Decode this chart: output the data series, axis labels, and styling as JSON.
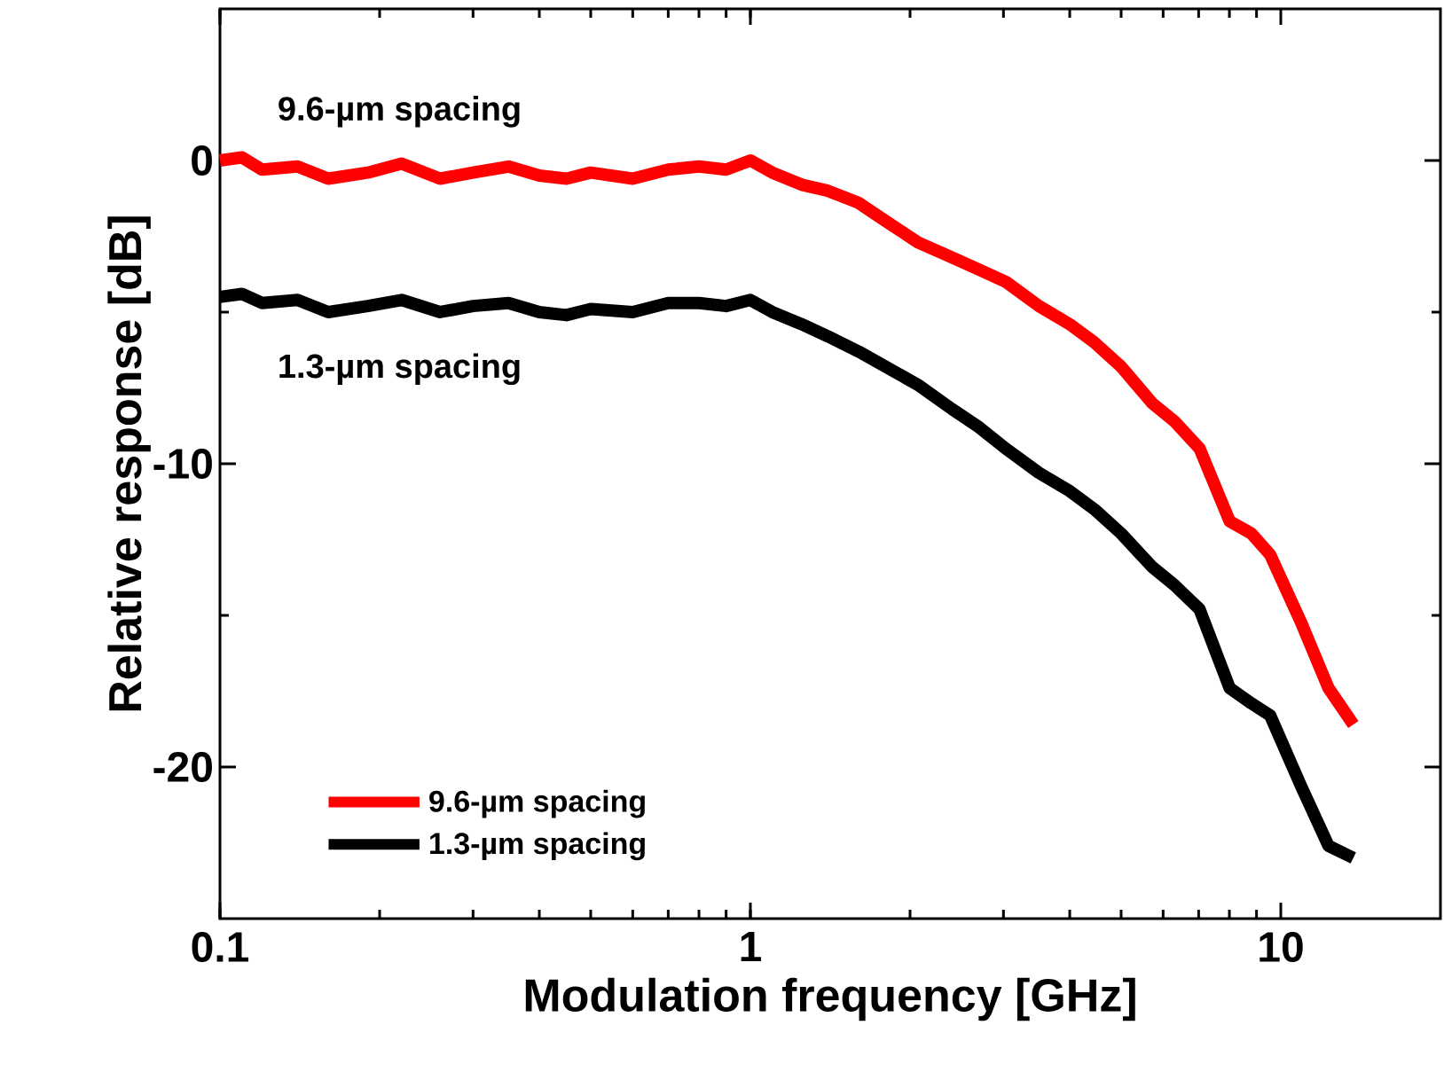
{
  "chart_data": {
    "type": "line",
    "xlabel": "Modulation frequency [GHz]",
    "ylabel": "Relative response [dB]",
    "log": "x",
    "xlim": [
      0.1,
      20
    ],
    "ylim": [
      -25,
      5
    ],
    "xticks": [
      0.1,
      1,
      10
    ],
    "yticks": [
      -20,
      -10,
      0
    ],
    "legend": "bottom left",
    "series": [
      {
        "name": "9.6-µm spacing",
        "color": "#ff0000",
        "x": [
          0.1,
          0.11,
          0.12,
          0.14,
          0.16,
          0.19,
          0.22,
          0.26,
          0.3,
          0.35,
          0.4,
          0.45,
          0.5,
          0.6,
          0.7,
          0.8,
          0.9,
          1.0,
          1.1,
          1.25,
          1.4,
          1.6,
          1.8,
          2.07,
          2.4,
          2.7,
          3.03,
          3.5,
          4.0,
          4.45,
          5.0,
          5.72,
          6.3,
          7.03,
          8.01,
          8.8,
          9.55,
          10.9,
          12.3,
          13.7
        ],
        "values": [
          0.0,
          0.1,
          -0.3,
          -0.2,
          -0.6,
          -0.4,
          -0.1,
          -0.6,
          -0.4,
          -0.2,
          -0.5,
          -0.6,
          -0.4,
          -0.6,
          -0.3,
          -0.2,
          -0.3,
          0.0,
          -0.4,
          -0.8,
          -1.0,
          -1.4,
          -2.0,
          -2.7,
          -3.2,
          -3.6,
          -4.0,
          -4.8,
          -5.4,
          -6.0,
          -6.8,
          -8.0,
          -8.6,
          -9.5,
          -11.9,
          -12.3,
          -13.0,
          -15.2,
          -17.4,
          -18.6
        ]
      },
      {
        "name": "1.3-µm spacing",
        "color": "#000000",
        "x": [
          0.1,
          0.11,
          0.12,
          0.14,
          0.16,
          0.19,
          0.22,
          0.26,
          0.3,
          0.35,
          0.4,
          0.45,
          0.5,
          0.6,
          0.7,
          0.8,
          0.9,
          1.0,
          1.1,
          1.25,
          1.4,
          1.6,
          1.8,
          2.07,
          2.4,
          2.7,
          3.03,
          3.5,
          4.0,
          4.45,
          5.0,
          5.72,
          6.3,
          7.03,
          8.01,
          8.8,
          9.55,
          10.9,
          12.3,
          13.7
        ],
        "values": [
          -4.5,
          -4.4,
          -4.7,
          -4.6,
          -5.0,
          -4.8,
          -4.6,
          -5.0,
          -4.8,
          -4.7,
          -5.0,
          -5.1,
          -4.9,
          -5.0,
          -4.7,
          -4.7,
          -4.8,
          -4.6,
          -5.0,
          -5.4,
          -5.8,
          -6.3,
          -6.8,
          -7.4,
          -8.2,
          -8.8,
          -9.5,
          -10.3,
          -10.9,
          -11.5,
          -12.3,
          -13.4,
          -14.0,
          -14.8,
          -17.4,
          -17.9,
          -18.3,
          -20.6,
          -22.6,
          -23.0
        ]
      }
    ],
    "annotations": [
      "9.6-µm spacing",
      "1.3-µm spacing"
    ]
  }
}
